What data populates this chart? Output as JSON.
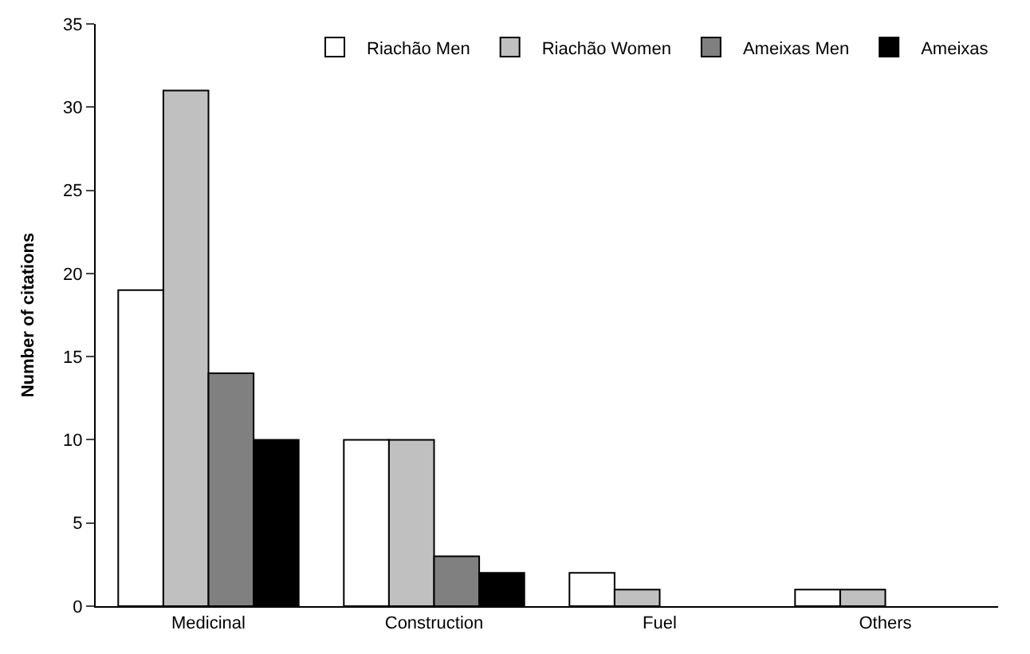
{
  "chart_data": {
    "type": "bar",
    "ylabel": "Number of citations",
    "categories": [
      "Medicinal",
      "Construction",
      "Fuel",
      "Others"
    ],
    "series": [
      {
        "name": "Riachão Men",
        "color": "#ffffff",
        "values": [
          19,
          10,
          2,
          1
        ]
      },
      {
        "name": "Riachão Women",
        "color": "#c0c0c0",
        "values": [
          31,
          10,
          1,
          1
        ]
      },
      {
        "name": "Ameixas Men",
        "color": "#808080",
        "values": [
          14,
          3,
          0,
          0
        ]
      },
      {
        "name": "Ameixas",
        "color": "#000000",
        "values": [
          10,
          2,
          0,
          0
        ]
      }
    ],
    "ylim": [
      0,
      35
    ],
    "yticks": [
      0,
      5,
      10,
      15,
      20,
      25,
      30,
      35
    ],
    "legend": "top right"
  }
}
